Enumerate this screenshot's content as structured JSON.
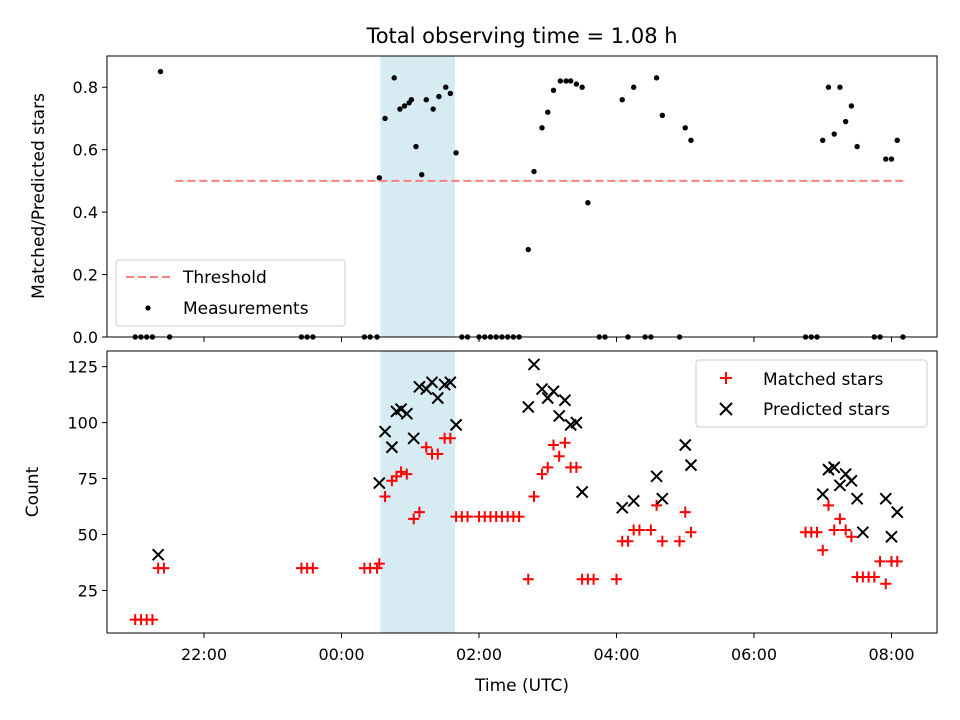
{
  "chart_data": {
    "title": "Total observing time = 1.08 h",
    "xlabel": "Time (UTC)",
    "x_ticks": [
      "22:00",
      "00:00",
      "02:00",
      "04:00",
      "06:00",
      "08:00"
    ],
    "colors": {
      "threshold": "#ff7f7f",
      "highlight": "#add8e6",
      "matched": "#ff0000",
      "predicted": "#000000",
      "measurement": "#000000"
    },
    "highlight_span": [
      "00:34",
      "01:39"
    ],
    "panels": [
      {
        "type": "scatter",
        "ylabel": "Matched/Predicted stars",
        "ylim": [
          0,
          0.9
        ],
        "y_ticks": [
          0.0,
          0.2,
          0.4,
          0.6,
          0.8
        ],
        "y_tick_labels": [
          "0.0",
          "0.2",
          "0.4",
          "0.6",
          "0.8"
        ],
        "threshold": {
          "name": "Threshold",
          "y": 0.5,
          "x_range": [
            "21:35",
            "08:10"
          ]
        },
        "legend": {
          "position": "lower-left",
          "entries": [
            "Threshold",
            "Measurements"
          ]
        },
        "series": [
          {
            "name": "Measurements",
            "points": [
              [
                "21:00",
                0.0
              ],
              [
                "21:05",
                0.0
              ],
              [
                "21:10",
                0.0
              ],
              [
                "21:15",
                0.0
              ],
              [
                "21:22",
                0.85
              ],
              [
                "21:30",
                0.0
              ],
              [
                "23:25",
                0.0
              ],
              [
                "23:30",
                0.0
              ],
              [
                "23:35",
                0.0
              ],
              [
                "00:20",
                0.0
              ],
              [
                "00:25",
                0.0
              ],
              [
                "00:31",
                0.0
              ],
              [
                "00:33",
                0.51
              ],
              [
                "00:38",
                0.7
              ],
              [
                "00:46",
                0.83
              ],
              [
                "00:51",
                0.73
              ],
              [
                "00:55",
                0.74
              ],
              [
                "00:59",
                0.75
              ],
              [
                "01:01",
                0.76
              ],
              [
                "01:05",
                0.61
              ],
              [
                "01:10",
                0.52
              ],
              [
                "01:14",
                0.76
              ],
              [
                "01:20",
                0.73
              ],
              [
                "01:25",
                0.77
              ],
              [
                "01:31",
                0.8
              ],
              [
                "01:35",
                0.78
              ],
              [
                "01:40",
                0.59
              ],
              [
                "01:45",
                0.0
              ],
              [
                "01:50",
                0.0
              ],
              [
                "02:00",
                0.0
              ],
              [
                "02:05",
                0.0
              ],
              [
                "02:10",
                0.0
              ],
              [
                "02:15",
                0.0
              ],
              [
                "02:20",
                0.0
              ],
              [
                "02:25",
                0.0
              ],
              [
                "02:30",
                0.0
              ],
              [
                "02:35",
                0.0
              ],
              [
                "02:43",
                0.28
              ],
              [
                "02:48",
                0.53
              ],
              [
                "02:55",
                0.67
              ],
              [
                "03:00",
                0.72
              ],
              [
                "03:05",
                0.79
              ],
              [
                "03:11",
                0.82
              ],
              [
                "03:16",
                0.82
              ],
              [
                "03:20",
                0.82
              ],
              [
                "03:25",
                0.81
              ],
              [
                "03:30",
                0.8
              ],
              [
                "03:35",
                0.43
              ],
              [
                "03:45",
                0.0
              ],
              [
                "03:50",
                0.0
              ],
              [
                "04:05",
                0.76
              ],
              [
                "04:10",
                0.0
              ],
              [
                "04:15",
                0.8
              ],
              [
                "04:25",
                0.0
              ],
              [
                "04:30",
                0.0
              ],
              [
                "04:35",
                0.83
              ],
              [
                "04:40",
                0.71
              ],
              [
                "04:55",
                0.0
              ],
              [
                "05:00",
                0.67
              ],
              [
                "05:05",
                0.63
              ],
              [
                "06:45",
                0.0
              ],
              [
                "06:50",
                0.0
              ],
              [
                "06:55",
                0.0
              ],
              [
                "07:00",
                0.63
              ],
              [
                "07:05",
                0.8
              ],
              [
                "07:10",
                0.65
              ],
              [
                "07:15",
                0.8
              ],
              [
                "07:20",
                0.69
              ],
              [
                "07:25",
                0.74
              ],
              [
                "07:30",
                0.61
              ],
              [
                "07:45",
                0.0
              ],
              [
                "07:50",
                0.0
              ],
              [
                "07:55",
                0.57
              ],
              [
                "08:00",
                0.57
              ],
              [
                "08:05",
                0.63
              ],
              [
                "08:10",
                0.0
              ]
            ]
          }
        ]
      },
      {
        "type": "scatter",
        "ylabel": "Count",
        "ylim": [
          6,
          132
        ],
        "y_ticks": [
          25,
          50,
          75,
          100,
          125
        ],
        "y_tick_labels": [
          "25",
          "50",
          "75",
          "100",
          "125"
        ],
        "legend": {
          "position": "top-right",
          "entries": [
            "Matched stars",
            "Predicted stars"
          ]
        },
        "series": [
          {
            "name": "Matched stars",
            "marker": "plus",
            "points": [
              [
                "21:00",
                12
              ],
              [
                "21:05",
                12
              ],
              [
                "21:10",
                12
              ],
              [
                "21:15",
                12
              ],
              [
                "21:20",
                35
              ],
              [
                "21:25",
                35
              ],
              [
                "23:25",
                35
              ],
              [
                "23:30",
                35
              ],
              [
                "23:35",
                35
              ],
              [
                "00:20",
                35
              ],
              [
                "00:25",
                35
              ],
              [
                "00:31",
                35
              ],
              [
                "00:33",
                37
              ],
              [
                "00:38",
                67
              ],
              [
                "00:44",
                74
              ],
              [
                "00:48",
                76
              ],
              [
                "00:52",
                78
              ],
              [
                "00:57",
                77
              ],
              [
                "01:03",
                57
              ],
              [
                "01:08",
                60
              ],
              [
                "01:14",
                89
              ],
              [
                "01:19",
                86
              ],
              [
                "01:24",
                86
              ],
              [
                "01:30",
                93
              ],
              [
                "01:35",
                93
              ],
              [
                "01:40",
                58
              ],
              [
                "01:45",
                58
              ],
              [
                "01:50",
                58
              ],
              [
                "02:00",
                58
              ],
              [
                "02:05",
                58
              ],
              [
                "02:10",
                58
              ],
              [
                "02:15",
                58
              ],
              [
                "02:20",
                58
              ],
              [
                "02:25",
                58
              ],
              [
                "02:30",
                58
              ],
              [
                "02:35",
                58
              ],
              [
                "02:43",
                30
              ],
              [
                "02:48",
                67
              ],
              [
                "02:55",
                77
              ],
              [
                "03:00",
                80
              ],
              [
                "03:05",
                90
              ],
              [
                "03:10",
                85
              ],
              [
                "03:15",
                91
              ],
              [
                "03:20",
                80
              ],
              [
                "03:25",
                80
              ],
              [
                "03:30",
                30
              ],
              [
                "03:35",
                30
              ],
              [
                "03:40",
                30
              ],
              [
                "04:00",
                30
              ],
              [
                "04:05",
                47
              ],
              [
                "04:10",
                47
              ],
              [
                "04:15",
                52
              ],
              [
                "04:20",
                52
              ],
              [
                "04:30",
                52
              ],
              [
                "04:35",
                63
              ],
              [
                "04:40",
                47
              ],
              [
                "04:55",
                47
              ],
              [
                "05:00",
                60
              ],
              [
                "05:05",
                51
              ],
              [
                "06:45",
                51
              ],
              [
                "06:50",
                51
              ],
              [
                "06:55",
                51
              ],
              [
                "07:00",
                43
              ],
              [
                "07:05",
                63
              ],
              [
                "07:10",
                52
              ],
              [
                "07:15",
                57
              ],
              [
                "07:20",
                52
              ],
              [
                "07:25",
                49
              ],
              [
                "07:30",
                31
              ],
              [
                "07:35",
                31
              ],
              [
                "07:40",
                31
              ],
              [
                "07:45",
                31
              ],
              [
                "07:50",
                38
              ],
              [
                "07:55",
                28
              ],
              [
                "08:00",
                38
              ],
              [
                "08:05",
                38
              ]
            ]
          },
          {
            "name": "Predicted stars",
            "marker": "x",
            "points": [
              [
                "21:20",
                41
              ],
              [
                "00:33",
                73
              ],
              [
                "00:38",
                96
              ],
              [
                "00:44",
                89
              ],
              [
                "00:48",
                105
              ],
              [
                "00:52",
                106
              ],
              [
                "00:57",
                104
              ],
              [
                "01:03",
                93
              ],
              [
                "01:08",
                116
              ],
              [
                "01:14",
                115
              ],
              [
                "01:19",
                118
              ],
              [
                "01:24",
                111
              ],
              [
                "01:30",
                117
              ],
              [
                "01:35",
                118
              ],
              [
                "01:40",
                99
              ],
              [
                "02:43",
                107
              ],
              [
                "02:48",
                126
              ],
              [
                "02:55",
                115
              ],
              [
                "03:00",
                111
              ],
              [
                "03:05",
                114
              ],
              [
                "03:10",
                103
              ],
              [
                "03:15",
                110
              ],
              [
                "03:20",
                99
              ],
              [
                "03:25",
                100
              ],
              [
                "03:30",
                69
              ],
              [
                "04:05",
                62
              ],
              [
                "04:15",
                65
              ],
              [
                "04:35",
                76
              ],
              [
                "04:40",
                66
              ],
              [
                "05:00",
                90
              ],
              [
                "05:05",
                81
              ],
              [
                "07:00",
                68
              ],
              [
                "07:05",
                79
              ],
              [
                "07:10",
                80
              ],
              [
                "07:15",
                72
              ],
              [
                "07:20",
                77
              ],
              [
                "07:25",
                74
              ],
              [
                "07:30",
                66
              ],
              [
                "07:35",
                51
              ],
              [
                "07:55",
                66
              ],
              [
                "08:00",
                49
              ],
              [
                "08:05",
                60
              ]
            ]
          }
        ]
      }
    ]
  }
}
